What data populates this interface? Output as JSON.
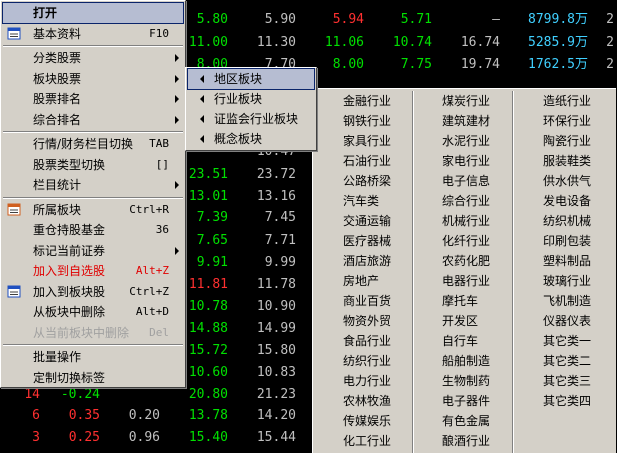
{
  "background_table": {
    "rows": [
      [
        null,
        null,
        null,
        {
          "text": "5.80",
          "color": "#00e000"
        },
        {
          "text": "5.90",
          "color": "#c0c0c0"
        },
        {
          "text": "5.94",
          "color": "#ff3030"
        },
        {
          "text": "5.71",
          "color": "#00e000"
        },
        {
          "text": "—",
          "color": "#c0c0c0"
        },
        {
          "text": "8799.8万",
          "color": "#40d0ff"
        },
        {
          "text": "2",
          "color": "#c0c0c0"
        }
      ],
      [
        null,
        null,
        null,
        {
          "text": "11.00",
          "color": "#00e000"
        },
        {
          "text": "11.30",
          "color": "#c0c0c0"
        },
        {
          "text": "11.06",
          "color": "#00e000"
        },
        {
          "text": "10.74",
          "color": "#00e000"
        },
        {
          "text": "16.74",
          "color": "#c0c0c0"
        },
        {
          "text": "5285.9万",
          "color": "#40d0ff"
        },
        {
          "text": "2",
          "color": "#c0c0c0"
        }
      ],
      [
        null,
        null,
        null,
        {
          "text": "8.00",
          "color": "#00e000"
        },
        {
          "text": "7.70",
          "color": "#c0c0c0"
        },
        {
          "text": "8.00",
          "color": "#00e000"
        },
        {
          "text": "7.75",
          "color": "#00e000"
        },
        {
          "text": "19.74",
          "color": "#c0c0c0"
        },
        {
          "text": "1762.5万",
          "color": "#40d0ff"
        },
        {
          "text": "2",
          "color": "#c0c0c0"
        }
      ],
      [
        null,
        null,
        null,
        null,
        {
          "text": "10.47",
          "color": "#c0c0c0"
        },
        null,
        null,
        null,
        null,
        null
      ],
      [
        null,
        null,
        null,
        {
          "text": "23.51",
          "color": "#00e000"
        },
        {
          "text": "23.72",
          "color": "#c0c0c0"
        },
        null,
        null,
        null,
        null,
        null
      ],
      [
        null,
        null,
        null,
        {
          "text": "13.01",
          "color": "#00e000"
        },
        {
          "text": "13.16",
          "color": "#c0c0c0"
        },
        null,
        null,
        null,
        null,
        null
      ],
      [
        null,
        null,
        null,
        {
          "text": "7.39",
          "color": "#00e000"
        },
        {
          "text": "7.45",
          "color": "#c0c0c0"
        },
        null,
        null,
        null,
        null,
        null
      ],
      [
        null,
        null,
        null,
        {
          "text": "7.65",
          "color": "#00e000"
        },
        {
          "text": "7.71",
          "color": "#c0c0c0"
        },
        null,
        null,
        null,
        null,
        null
      ],
      [
        null,
        null,
        null,
        {
          "text": "9.91",
          "color": "#00e000"
        },
        {
          "text": "9.99",
          "color": "#c0c0c0"
        },
        null,
        null,
        null,
        null,
        null
      ],
      [
        null,
        null,
        null,
        {
          "text": "11.81",
          "color": "#ff3030"
        },
        {
          "text": "11.78",
          "color": "#c0c0c0"
        },
        null,
        null,
        null,
        null,
        null
      ],
      [
        null,
        null,
        null,
        {
          "text": "10.78",
          "color": "#00e000"
        },
        {
          "text": "10.90",
          "color": "#c0c0c0"
        },
        null,
        null,
        null,
        null,
        null
      ],
      [
        null,
        null,
        null,
        {
          "text": "14.88",
          "color": "#00e000"
        },
        {
          "text": "14.99",
          "color": "#c0c0c0"
        },
        null,
        null,
        null,
        null,
        null
      ],
      [
        null,
        null,
        null,
        {
          "text": "15.72",
          "color": "#00e000"
        },
        {
          "text": "15.80",
          "color": "#c0c0c0"
        },
        null,
        null,
        null,
        null,
        null
      ],
      [
        null,
        null,
        null,
        {
          "text": "10.60",
          "color": "#00e000"
        },
        {
          "text": "10.83",
          "color": "#c0c0c0"
        },
        null,
        null,
        null,
        null,
        null
      ],
      [
        {
          "text": "14",
          "color": "#ff3030"
        },
        {
          "text": "-0.24",
          "color": "#00e000"
        },
        null,
        {
          "text": "20.80",
          "color": "#00e000"
        },
        {
          "text": "21.23",
          "color": "#c0c0c0"
        },
        null,
        null,
        null,
        null,
        null
      ],
      [
        {
          "text": "6",
          "color": "#ff3030"
        },
        {
          "text": "0.35",
          "color": "#ff3030"
        },
        {
          "text": "0.20",
          "color": "#c0c0c0"
        },
        {
          "text": "13.78",
          "color": "#00e000"
        },
        {
          "text": "14.20",
          "color": "#c0c0c0"
        },
        null,
        null,
        null,
        null,
        null
      ],
      [
        {
          "text": "3",
          "color": "#ff3030"
        },
        {
          "text": "0.25",
          "color": "#ff3030"
        },
        {
          "text": "0.96",
          "color": "#c0c0c0"
        },
        {
          "text": "15.40",
          "color": "#00e000"
        },
        {
          "text": "15.44",
          "color": "#c0c0c0"
        },
        null,
        null,
        null,
        null,
        null
      ]
    ]
  },
  "context_menu": {
    "groups": [
      [
        {
          "label": "打开",
          "state": "highlighted"
        },
        {
          "label": "基本资料",
          "shortcut": "F10",
          "icon": true
        }
      ],
      [
        {
          "label": "分类股票",
          "submenu": true
        },
        {
          "label": "板块股票",
          "submenu": true
        },
        {
          "label": "股票排名",
          "submenu": true
        },
        {
          "label": "综合排名",
          "submenu": true
        }
      ],
      [
        {
          "label": "行情/财务栏目切换",
          "shortcut": "TAB"
        },
        {
          "label": "股票类型切换",
          "shortcut": "[]"
        },
        {
          "label": "栏目统计",
          "submenu": true
        }
      ],
      [
        {
          "label": "所属板块",
          "shortcut": "Ctrl+R",
          "icon": true
        },
        {
          "label": "重仓持股基金",
          "shortcut": "36"
        },
        {
          "label": "标记当前证券",
          "submenu": true
        },
        {
          "label": "加入到自选股",
          "shortcut": "Alt+Z",
          "state": "alert"
        },
        {
          "label": "加入到板块股",
          "shortcut": "Ctrl+Z",
          "icon": true
        },
        {
          "label": "从板块中删除",
          "shortcut": "Alt+D"
        },
        {
          "label": "从当前板块中删除",
          "shortcut": "Del",
          "state": "disabled"
        }
      ],
      [
        {
          "label": "批量操作"
        },
        {
          "label": "定制切换标签"
        }
      ]
    ]
  },
  "submenu": {
    "items": [
      {
        "label": "地区板块",
        "state": "highlighted"
      },
      {
        "label": "行业板块"
      },
      {
        "label": "证监会行业板块"
      },
      {
        "label": "概念板块"
      }
    ]
  },
  "industry_panel": {
    "columns": [
      [
        "金融行业",
        "钢铁行业",
        "家具行业",
        "石油行业",
        "公路桥梁",
        "汽车类",
        "交通运输",
        "医疗器械",
        "酒店旅游",
        "房地产",
        "商业百货",
        "物资外贸",
        "食品行业",
        "纺织行业",
        "电力行业",
        "农林牧渔",
        "传媒娱乐",
        "化工行业"
      ],
      [
        "煤炭行业",
        "建筑建材",
        "水泥行业",
        "家电行业",
        "电子信息",
        "综合行业",
        "机械行业",
        "化纤行业",
        "农药化肥",
        "电器行业",
        "摩托车",
        "开发区",
        "自行车",
        "船舶制造",
        "生物制药",
        "电子器件",
        "有色金属",
        "酿酒行业"
      ],
      [
        "造纸行业",
        "环保行业",
        "陶瓷行业",
        "服装鞋类",
        "供水供气",
        "发电设备",
        "纺织机械",
        "印刷包装",
        "塑料制品",
        "玻璃行业",
        "飞机制造",
        "仪器仪表",
        "其它类一",
        "其它类二",
        "其它类三",
        "其它类四"
      ]
    ]
  }
}
